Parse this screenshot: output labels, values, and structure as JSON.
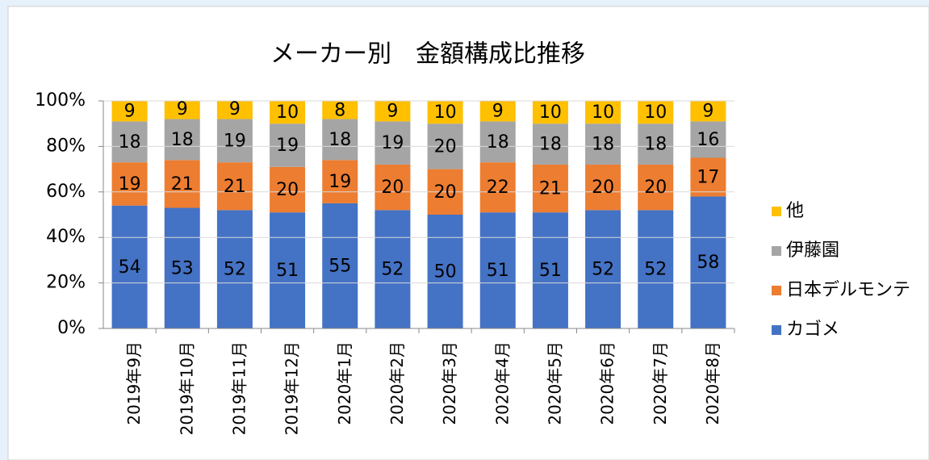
{
  "chart_data": {
    "type": "stacked_bar",
    "title": "メーカー別　金額構成比推移",
    "categories": [
      "2019年9月",
      "2019年10月",
      "2019年11月",
      "2019年12月",
      "2020年1月",
      "2020年2月",
      "2020年3月",
      "2020年4月",
      "2020年5月",
      "2020年6月",
      "2020年7月",
      "2020年8月"
    ],
    "series": [
      {
        "name": "カゴメ",
        "color": "#4472c4",
        "values": [
          54,
          53,
          52,
          51,
          55,
          52,
          50,
          51,
          51,
          52,
          52,
          58
        ]
      },
      {
        "name": "日本デルモンテ",
        "color": "#ed7d31",
        "values": [
          19,
          21,
          21,
          20,
          19,
          20,
          20,
          22,
          21,
          20,
          20,
          17
        ]
      },
      {
        "name": "伊藤園",
        "color": "#a5a5a5",
        "values": [
          18,
          18,
          19,
          19,
          18,
          19,
          20,
          18,
          18,
          18,
          18,
          16
        ]
      },
      {
        "name": "他",
        "color": "#ffc000",
        "values": [
          9,
          9,
          9,
          10,
          8,
          9,
          10,
          9,
          10,
          10,
          10,
          9
        ]
      }
    ],
    "ylim": [
      0,
      100
    ],
    "yticks": [
      {
        "value": 0,
        "label": "0%"
      },
      {
        "value": 20,
        "label": "20%"
      },
      {
        "value": 40,
        "label": "40%"
      },
      {
        "value": 60,
        "label": "60%"
      },
      {
        "value": 80,
        "label": "80%"
      },
      {
        "value": 100,
        "label": "100%"
      }
    ],
    "grid": true,
    "legend": "right"
  }
}
